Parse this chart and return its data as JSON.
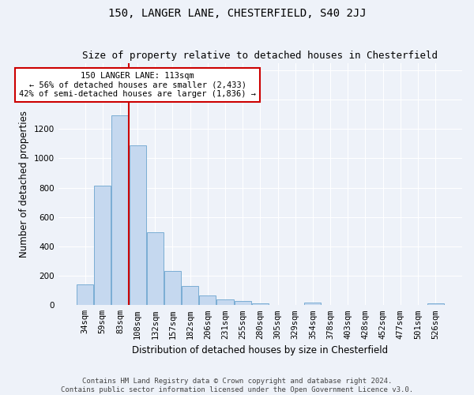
{
  "title": "150, LANGER LANE, CHESTERFIELD, S40 2JJ",
  "subtitle": "Size of property relative to detached houses in Chesterfield",
  "xlabel": "Distribution of detached houses by size in Chesterfield",
  "ylabel": "Number of detached properties",
  "footer_line1": "Contains HM Land Registry data © Crown copyright and database right 2024.",
  "footer_line2": "Contains public sector information licensed under the Open Government Licence v3.0.",
  "categories": [
    "34sqm",
    "59sqm",
    "83sqm",
    "108sqm",
    "132sqm",
    "157sqm",
    "182sqm",
    "206sqm",
    "231sqm",
    "255sqm",
    "280sqm",
    "305sqm",
    "329sqm",
    "354sqm",
    "378sqm",
    "403sqm",
    "428sqm",
    "452sqm",
    "477sqm",
    "501sqm",
    "526sqm"
  ],
  "values": [
    140,
    815,
    1295,
    1090,
    495,
    232,
    130,
    68,
    38,
    27,
    15,
    0,
    0,
    18,
    0,
    0,
    0,
    0,
    0,
    0,
    15
  ],
  "bar_color": "#c5d8ef",
  "bar_edge_color": "#7aadd4",
  "annotation_text": "150 LANGER LANE: 113sqm\n← 56% of detached houses are smaller (2,433)\n42% of semi-detached houses are larger (1,836) →",
  "annotation_box_color": "#ffffff",
  "annotation_box_edge": "#cc0000",
  "red_line_color": "#cc0000",
  "ylim": [
    0,
    1650
  ],
  "background_color": "#eef2f9",
  "grid_color": "#ffffff",
  "title_fontsize": 10,
  "subtitle_fontsize": 9,
  "axis_label_fontsize": 8.5,
  "tick_fontsize": 7.5,
  "annotation_fontsize": 7.5,
  "footer_fontsize": 6.5
}
